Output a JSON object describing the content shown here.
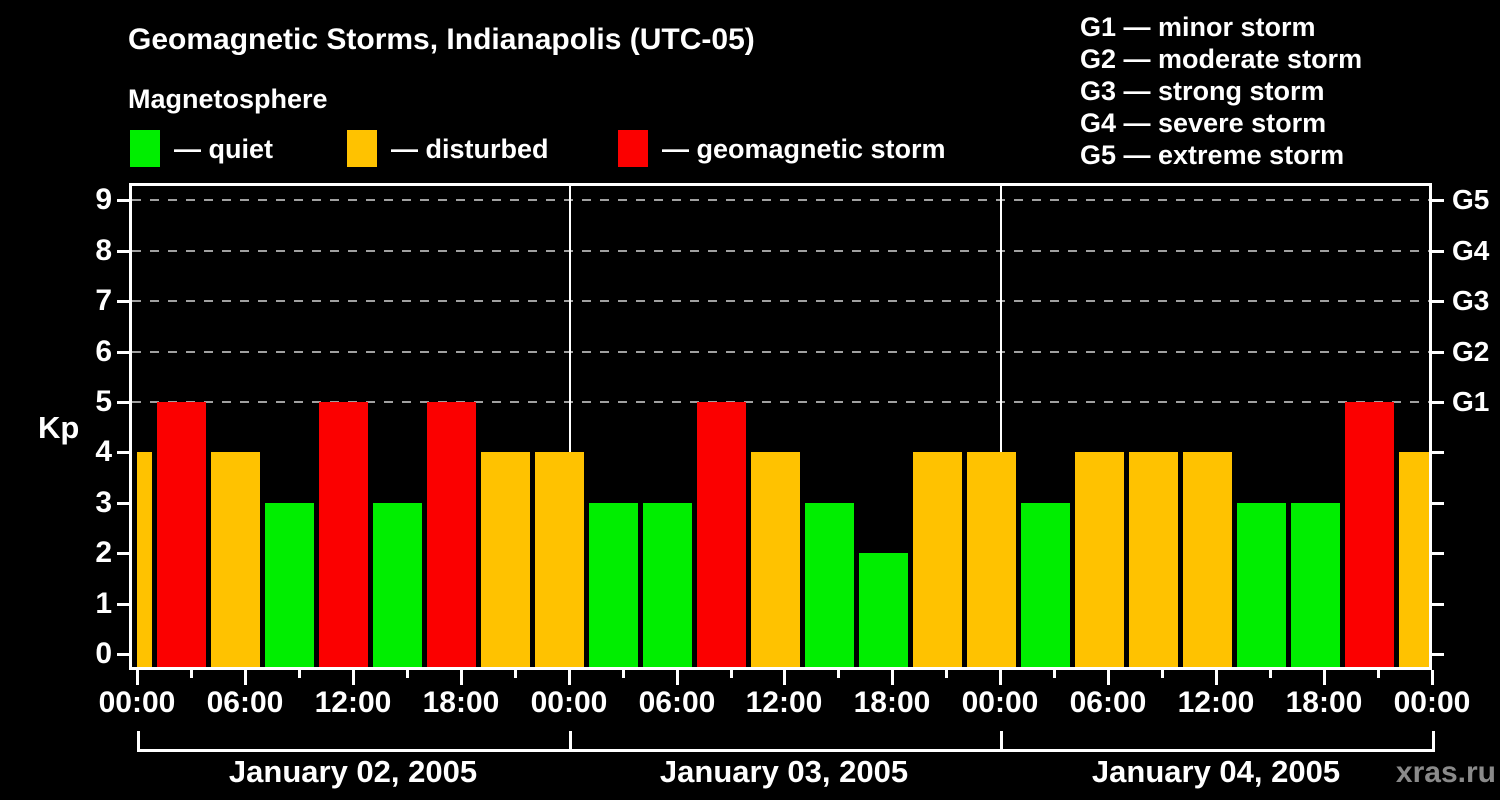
{
  "title": "Geomagnetic Storms, Indianapolis (UTC-05)",
  "subtitle": "Magnetosphere",
  "legend": {
    "items": [
      {
        "key": "quiet",
        "label": "— quiet",
        "color": "#00ee00"
      },
      {
        "key": "disturbed",
        "label": "— disturbed",
        "color": "#ffc200"
      },
      {
        "key": "storm",
        "label": "— geomagnetic storm",
        "color": "#fb0000"
      }
    ]
  },
  "storm_scale_legend": [
    {
      "text": "G1 — minor storm"
    },
    {
      "text": "G2 — moderate storm"
    },
    {
      "text": "G3 — strong storm"
    },
    {
      "text": "G4 — severe storm"
    },
    {
      "text": "G5 — extreme storm"
    }
  ],
  "watermark": "xras.ru",
  "colors": {
    "quiet": "#00ee00",
    "disturbed": "#ffc200",
    "storm": "#fb0000",
    "axis": "#ffffff",
    "grid": "#a0a0a0",
    "day_divider": "#ffffff",
    "background": "#000000",
    "text": "#ffffff",
    "watermark": "#8a8a8a"
  },
  "chart_data": {
    "type": "bar",
    "title": "Geomagnetic Storms, Indianapolis (UTC-05)",
    "subtitle": "Magnetosphere",
    "ylabel": "Kp",
    "ylim": [
      0,
      9
    ],
    "yticks": [
      0,
      1,
      2,
      3,
      4,
      5,
      6,
      7,
      8,
      9
    ],
    "gridlines_at_kp": [
      5,
      6,
      7,
      8,
      9
    ],
    "right_axis": [
      {
        "kp": 5,
        "label": "G1"
      },
      {
        "kp": 6,
        "label": "G2"
      },
      {
        "kp": 7,
        "label": "G3"
      },
      {
        "kp": 8,
        "label": "G4"
      },
      {
        "kp": 9,
        "label": "G5"
      }
    ],
    "x_range_hours": [
      0,
      72
    ],
    "x_major_tick_every_hours": 6,
    "x_minor_tick_every_hours": 3,
    "x_tick_labels": [
      "00:00",
      "06:00",
      "12:00",
      "18:00",
      "00:00",
      "06:00",
      "12:00",
      "18:00",
      "00:00",
      "06:00",
      "12:00",
      "18:00",
      "00:00"
    ],
    "days": [
      "January 02, 2005",
      "January 03, 2005",
      "January 04, 2005"
    ],
    "bar_duration_hours": 3,
    "bars": [
      {
        "start_hour": -2,
        "kp": 4,
        "status": "disturbed"
      },
      {
        "start_hour": 1,
        "kp": 5,
        "status": "storm"
      },
      {
        "start_hour": 4,
        "kp": 4,
        "status": "disturbed"
      },
      {
        "start_hour": 7,
        "kp": 3,
        "status": "quiet"
      },
      {
        "start_hour": 10,
        "kp": 5,
        "status": "storm"
      },
      {
        "start_hour": 13,
        "kp": 3,
        "status": "quiet"
      },
      {
        "start_hour": 16,
        "kp": 5,
        "status": "storm"
      },
      {
        "start_hour": 19,
        "kp": 4,
        "status": "disturbed"
      },
      {
        "start_hour": 22,
        "kp": 4,
        "status": "disturbed"
      },
      {
        "start_hour": 25,
        "kp": 3,
        "status": "quiet"
      },
      {
        "start_hour": 28,
        "kp": 3,
        "status": "quiet"
      },
      {
        "start_hour": 31,
        "kp": 5,
        "status": "storm"
      },
      {
        "start_hour": 34,
        "kp": 4,
        "status": "disturbed"
      },
      {
        "start_hour": 37,
        "kp": 3,
        "status": "quiet"
      },
      {
        "start_hour": 40,
        "kp": 2,
        "status": "quiet"
      },
      {
        "start_hour": 43,
        "kp": 4,
        "status": "disturbed"
      },
      {
        "start_hour": 46,
        "kp": 4,
        "status": "disturbed"
      },
      {
        "start_hour": 49,
        "kp": 3,
        "status": "quiet"
      },
      {
        "start_hour": 52,
        "kp": 4,
        "status": "disturbed"
      },
      {
        "start_hour": 55,
        "kp": 4,
        "status": "disturbed"
      },
      {
        "start_hour": 58,
        "kp": 4,
        "status": "disturbed"
      },
      {
        "start_hour": 61,
        "kp": 3,
        "status": "quiet"
      },
      {
        "start_hour": 64,
        "kp": 3,
        "status": "quiet"
      },
      {
        "start_hour": 67,
        "kp": 5,
        "status": "storm"
      },
      {
        "start_hour": 70,
        "kp": 4,
        "status": "disturbed"
      }
    ]
  }
}
